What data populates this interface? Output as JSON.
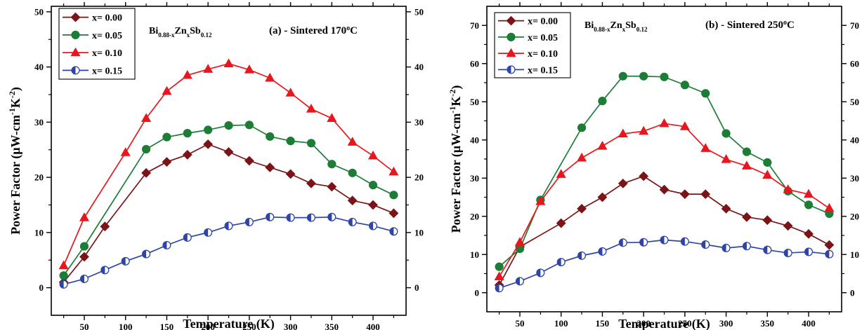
{
  "chart_data": [
    {
      "type": "line",
      "annotation": "(a) - Sintered 170",
      "annotation_sup": "o",
      "annotation_unit": "C",
      "formula": {
        "base1": "Bi",
        "sub1": "0.88-x",
        "base2": "Zn",
        "sub2": "x",
        "base3": "Sb",
        "sub3": "0.12"
      },
      "xlabel": "Temperature (K)",
      "ylabel": {
        "main": "Power Factor (μW-cm",
        "sup1": "-1",
        "mid": "K",
        "sup2": "-2",
        "end": ")"
      },
      "xlim": [
        10,
        440
      ],
      "ylim": [
        -5,
        51
      ],
      "xticks": [
        50,
        100,
        150,
        200,
        250,
        300,
        350,
        400
      ],
      "yticks": [
        0,
        10,
        20,
        30,
        40,
        50
      ],
      "x": [
        25,
        50,
        75,
        100,
        125,
        150,
        175,
        200,
        225,
        250,
        275,
        300,
        325,
        350,
        375,
        400,
        425
      ],
      "legend_position": "top-left",
      "series": [
        {
          "name": "x= 0.00",
          "color": "#7b1416",
          "marker": "diamond",
          "x": [
            25,
            50,
            75,
            125,
            150,
            175,
            200,
            225,
            250,
            275,
            300,
            325,
            350,
            375,
            400,
            425
          ],
          "values": [
            1.0,
            5.6,
            11.1,
            20.8,
            22.8,
            24.1,
            26.0,
            24.6,
            23.0,
            21.8,
            20.6,
            18.9,
            18.3,
            15.8,
            15.0,
            13.5
          ]
        },
        {
          "name": "x= 0.05",
          "color": "#1d7d36",
          "marker": "circle",
          "x": [
            25,
            50,
            125,
            150,
            175,
            200,
            225,
            250,
            275,
            300,
            325,
            350,
            375,
            400,
            425
          ],
          "values": [
            2.2,
            7.5,
            25.1,
            27.3,
            28.0,
            28.6,
            29.4,
            29.5,
            27.4,
            26.6,
            26.2,
            22.4,
            20.8,
            18.6,
            16.8
          ]
        },
        {
          "name": "x= 0.10",
          "color": "#e8171e",
          "marker": "triangle",
          "x": [
            25,
            50,
            100,
            125,
            150,
            175,
            200,
            225,
            250,
            275,
            300,
            325,
            350,
            375,
            400,
            425
          ],
          "values": [
            4.0,
            12.7,
            24.5,
            30.7,
            35.6,
            38.5,
            39.6,
            40.6,
            39.5,
            38.0,
            35.3,
            32.4,
            30.7,
            26.4,
            23.9,
            21.0
          ]
        },
        {
          "name": "x= 0.15",
          "color": "#2e45a6",
          "marker": "halfcircle",
          "x": [
            25,
            50,
            75,
            100,
            125,
            150,
            175,
            200,
            225,
            250,
            275,
            300,
            325,
            350,
            375,
            400,
            425
          ],
          "values": [
            0.6,
            1.6,
            3.2,
            4.8,
            6.1,
            7.7,
            9.1,
            10.0,
            11.2,
            11.9,
            12.8,
            12.7,
            12.7,
            12.8,
            11.9,
            11.2,
            10.2
          ]
        }
      ]
    },
    {
      "type": "line",
      "annotation": "(b) - Sintered 250",
      "annotation_sup": "o",
      "annotation_unit": "C",
      "formula": {
        "base1": "Bi",
        "sub1": "0.88-x",
        "base2": "Zn",
        "sub2": "x",
        "base3": "Sb",
        "sub3": "0.12"
      },
      "xlabel": "Temperature (K)",
      "ylabel": {
        "main": "Power Factor (μW-cm",
        "sup1": "-1",
        "mid": "K",
        "sup2": "-2",
        "end": ")"
      },
      "xlim": [
        10,
        440
      ],
      "ylim": [
        -5,
        75
      ],
      "xticks": [
        50,
        100,
        150,
        200,
        250,
        300,
        350,
        400
      ],
      "yticks": [
        0,
        10,
        20,
        30,
        40,
        50,
        60,
        70
      ],
      "legend_position": "top-left",
      "series": [
        {
          "name": "x= 0.00",
          "color": "#7b1416",
          "marker": "diamond",
          "x": [
            25,
            50,
            100,
            125,
            150,
            175,
            200,
            225,
            250,
            275,
            300,
            325,
            350,
            375,
            400,
            425
          ],
          "values": [
            2.0,
            12.0,
            18.2,
            22.0,
            25.0,
            28.6,
            30.5,
            27.0,
            25.8,
            25.8,
            22.0,
            19.8,
            19.0,
            17.5,
            15.4,
            12.5
          ]
        },
        {
          "name": "x= 0.05",
          "color": "#1d7d36",
          "marker": "circle",
          "x": [
            25,
            50,
            75,
            125,
            150,
            175,
            200,
            225,
            250,
            275,
            300,
            325,
            350,
            375,
            400,
            425
          ],
          "values": [
            6.8,
            11.5,
            24.3,
            43.2,
            50.2,
            56.7,
            56.7,
            56.5,
            54.4,
            52.2,
            41.7,
            36.9,
            34.1,
            26.6,
            23.0,
            20.7
          ]
        },
        {
          "name": "x= 0.10",
          "color": "#e8171e",
          "marker": "triangle",
          "x": [
            25,
            50,
            75,
            100,
            125,
            150,
            175,
            200,
            225,
            250,
            275,
            300,
            325,
            350,
            375,
            400,
            425
          ],
          "values": [
            4.2,
            13.2,
            23.9,
            31.0,
            35.3,
            38.4,
            41.6,
            42.3,
            44.3,
            43.5,
            37.8,
            34.9,
            33.2,
            30.8,
            27.0,
            25.8,
            22.1
          ]
        },
        {
          "name": "x= 0.15",
          "color": "#2e45a6",
          "marker": "halfcircle",
          "x": [
            25,
            50,
            75,
            100,
            125,
            150,
            175,
            200,
            225,
            250,
            275,
            300,
            325,
            350,
            375,
            400,
            425
          ],
          "values": [
            1.2,
            3.0,
            5.2,
            8.0,
            9.7,
            10.8,
            13.1,
            13.2,
            13.8,
            13.4,
            12.6,
            11.7,
            12.2,
            11.2,
            10.4,
            10.7,
            10.1
          ]
        }
      ]
    }
  ]
}
